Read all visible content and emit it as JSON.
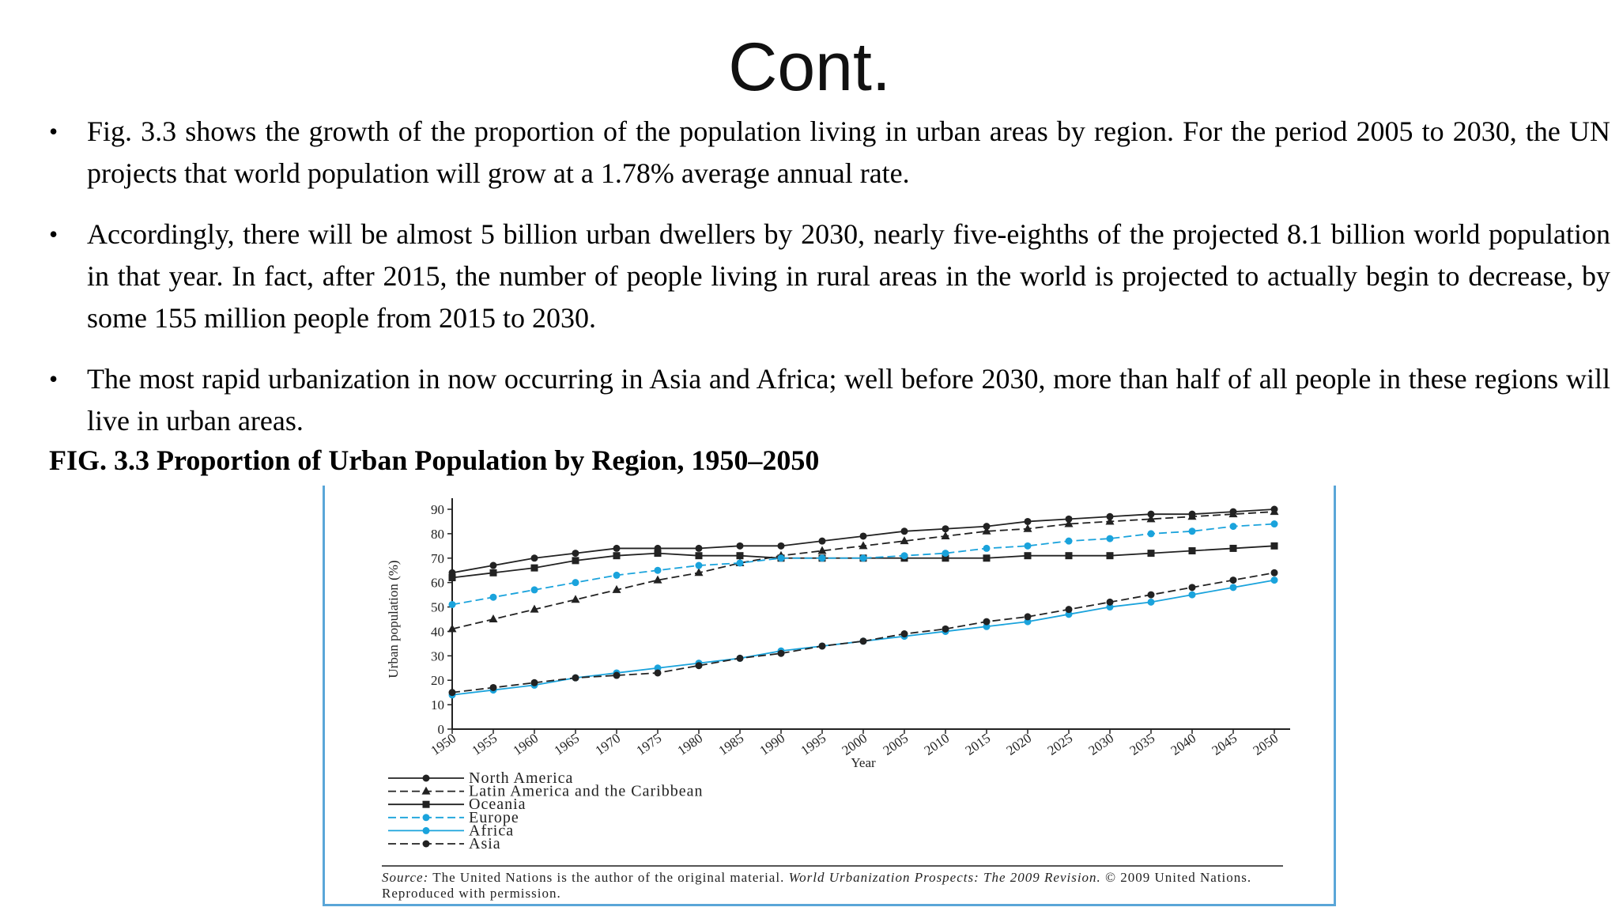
{
  "title": "Cont.",
  "bullets": [
    "Fig. 3.3 shows the growth of the proportion of the population living in urban areas by region. For the period 2005 to 2030, the UN projects that world population will grow at a 1.78% average annual rate.",
    "Accordingly, there will be almost 5 billion urban dwellers by 2030, nearly five-eighths of the projected 8.1 billion world population in that year. In fact, after 2015, the number of people living in rural areas in the world is projected to actually begin to decrease, by some 155 million people from 2015 to 2030.",
    "The most rapid urbanization in now occurring in Asia and Africa; well before 2030, more than half of all people in these regions will live in urban areas."
  ],
  "bullet_symbol": "•",
  "figure_caption": "FIG. 3.3 Proportion of Urban Population by Region, 1950–2050",
  "source": {
    "label": "Source:",
    "text": "The United Nations is the author of the original material.",
    "publication": "World Urbanization Prospects: The 2009 Revision.",
    "rights": "© 2009 United Nations. Reproduced with permission."
  },
  "chart_data": {
    "type": "line",
    "xlabel": "Year",
    "ylabel": "Urban population (%)",
    "ylim": [
      0,
      90
    ],
    "yticks": [
      0,
      10,
      20,
      30,
      40,
      50,
      60,
      70,
      80,
      90
    ],
    "grid": false,
    "legend_position": "bottom-left",
    "x": [
      "1950",
      "1955",
      "1960",
      "1965",
      "1970",
      "1975",
      "1980",
      "1985",
      "1990",
      "1995",
      "2000",
      "2005",
      "2010",
      "2015",
      "2020",
      "2025",
      "2030",
      "2035",
      "2040",
      "2045",
      "2050"
    ],
    "series": [
      {
        "name": "North America",
        "color": "#222222",
        "dash": "solid",
        "marker": "circle",
        "values": [
          64,
          67,
          70,
          72,
          74,
          74,
          74,
          75,
          75,
          77,
          79,
          81,
          82,
          83,
          85,
          86,
          87,
          88,
          88,
          89,
          90
        ]
      },
      {
        "name": "Latin America and the Caribbean",
        "color": "#222222",
        "dash": "dashed",
        "marker": "triangle",
        "values": [
          41,
          45,
          49,
          53,
          57,
          61,
          64,
          68,
          71,
          73,
          75,
          77,
          79,
          81,
          82,
          84,
          85,
          86,
          87,
          88,
          89
        ]
      },
      {
        "name": "Oceania",
        "color": "#222222",
        "dash": "solid",
        "marker": "square",
        "values": [
          62,
          64,
          66,
          69,
          71,
          72,
          71,
          71,
          70,
          70,
          70,
          70,
          70,
          70,
          71,
          71,
          71,
          72,
          73,
          74,
          75
        ]
      },
      {
        "name": "Europe",
        "color": "#1aa3dc",
        "dash": "dashed",
        "marker": "circle",
        "values": [
          51,
          54,
          57,
          60,
          63,
          65,
          67,
          68,
          70,
          70,
          70,
          71,
          72,
          74,
          75,
          77,
          78,
          80,
          81,
          83,
          84
        ]
      },
      {
        "name": "Africa",
        "color": "#1aa3dc",
        "dash": "solid",
        "marker": "circle",
        "values": [
          14,
          16,
          18,
          21,
          23,
          25,
          27,
          29,
          32,
          34,
          36,
          38,
          40,
          42,
          44,
          47,
          50,
          52,
          55,
          58,
          61
        ]
      },
      {
        "name": "Asia",
        "color": "#222222",
        "dash": "dashed",
        "marker": "circle",
        "values": [
          15,
          17,
          19,
          21,
          22,
          23,
          26,
          29,
          31,
          34,
          36,
          39,
          41,
          44,
          46,
          49,
          52,
          55,
          58,
          61,
          64
        ]
      }
    ]
  }
}
